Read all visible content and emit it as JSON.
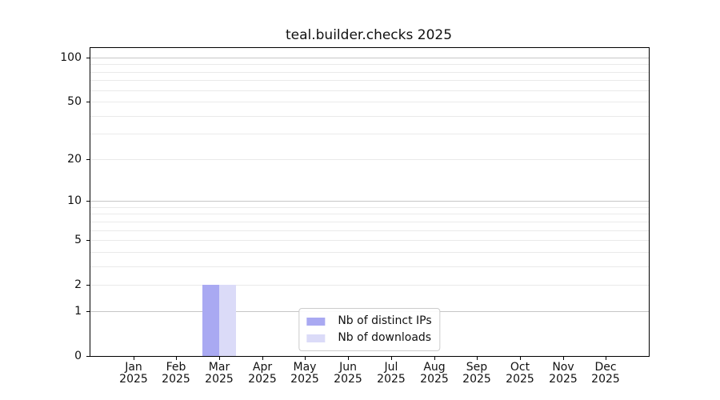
{
  "chart_data": {
    "type": "bar",
    "title": "teal.builder.checks 2025",
    "xlabel": "",
    "ylabel": "",
    "categories": [
      {
        "month": "Jan",
        "year": "2025"
      },
      {
        "month": "Feb",
        "year": "2025"
      },
      {
        "month": "Mar",
        "year": "2025"
      },
      {
        "month": "Apr",
        "year": "2025"
      },
      {
        "month": "May",
        "year": "2025"
      },
      {
        "month": "Jun",
        "year": "2025"
      },
      {
        "month": "Jul",
        "year": "2025"
      },
      {
        "month": "Aug",
        "year": "2025"
      },
      {
        "month": "Sep",
        "year": "2025"
      },
      {
        "month": "Oct",
        "year": "2025"
      },
      {
        "month": "Nov",
        "year": "2025"
      },
      {
        "month": "Dec",
        "year": "2025"
      }
    ],
    "series": [
      {
        "name": "Nb of distinct IPs",
        "color": "#a9a9f2",
        "values": [
          0,
          0,
          2,
          0,
          0,
          0,
          0,
          0,
          0,
          0,
          0,
          0
        ]
      },
      {
        "name": "Nb of downloads",
        "color": "#dbdbf8",
        "values": [
          0,
          0,
          2,
          0,
          0,
          0,
          0,
          0,
          0,
          0,
          0,
          0
        ]
      }
    ],
    "y_axis": {
      "scale": "log1p",
      "ylim": [
        0,
        116
      ],
      "tick_values": [
        0,
        1,
        2,
        5,
        10,
        20,
        50,
        100
      ],
      "minor_gridline_values": [
        3,
        4,
        6,
        7,
        8,
        9,
        30,
        40,
        60,
        70,
        80,
        90
      ],
      "decade_gridline_values": [
        1,
        10,
        100
      ]
    },
    "legend": {
      "position": "lower center",
      "entries": [
        "Nb of distinct IPs",
        "Nb of downloads"
      ]
    },
    "grid": "horizontal-only",
    "colors": {
      "background": "#ffffff",
      "axis_border": "#000000",
      "decade_gridline": "#c6c6c6",
      "minor_gridline": "#eaeaea",
      "text": "#111111"
    }
  }
}
